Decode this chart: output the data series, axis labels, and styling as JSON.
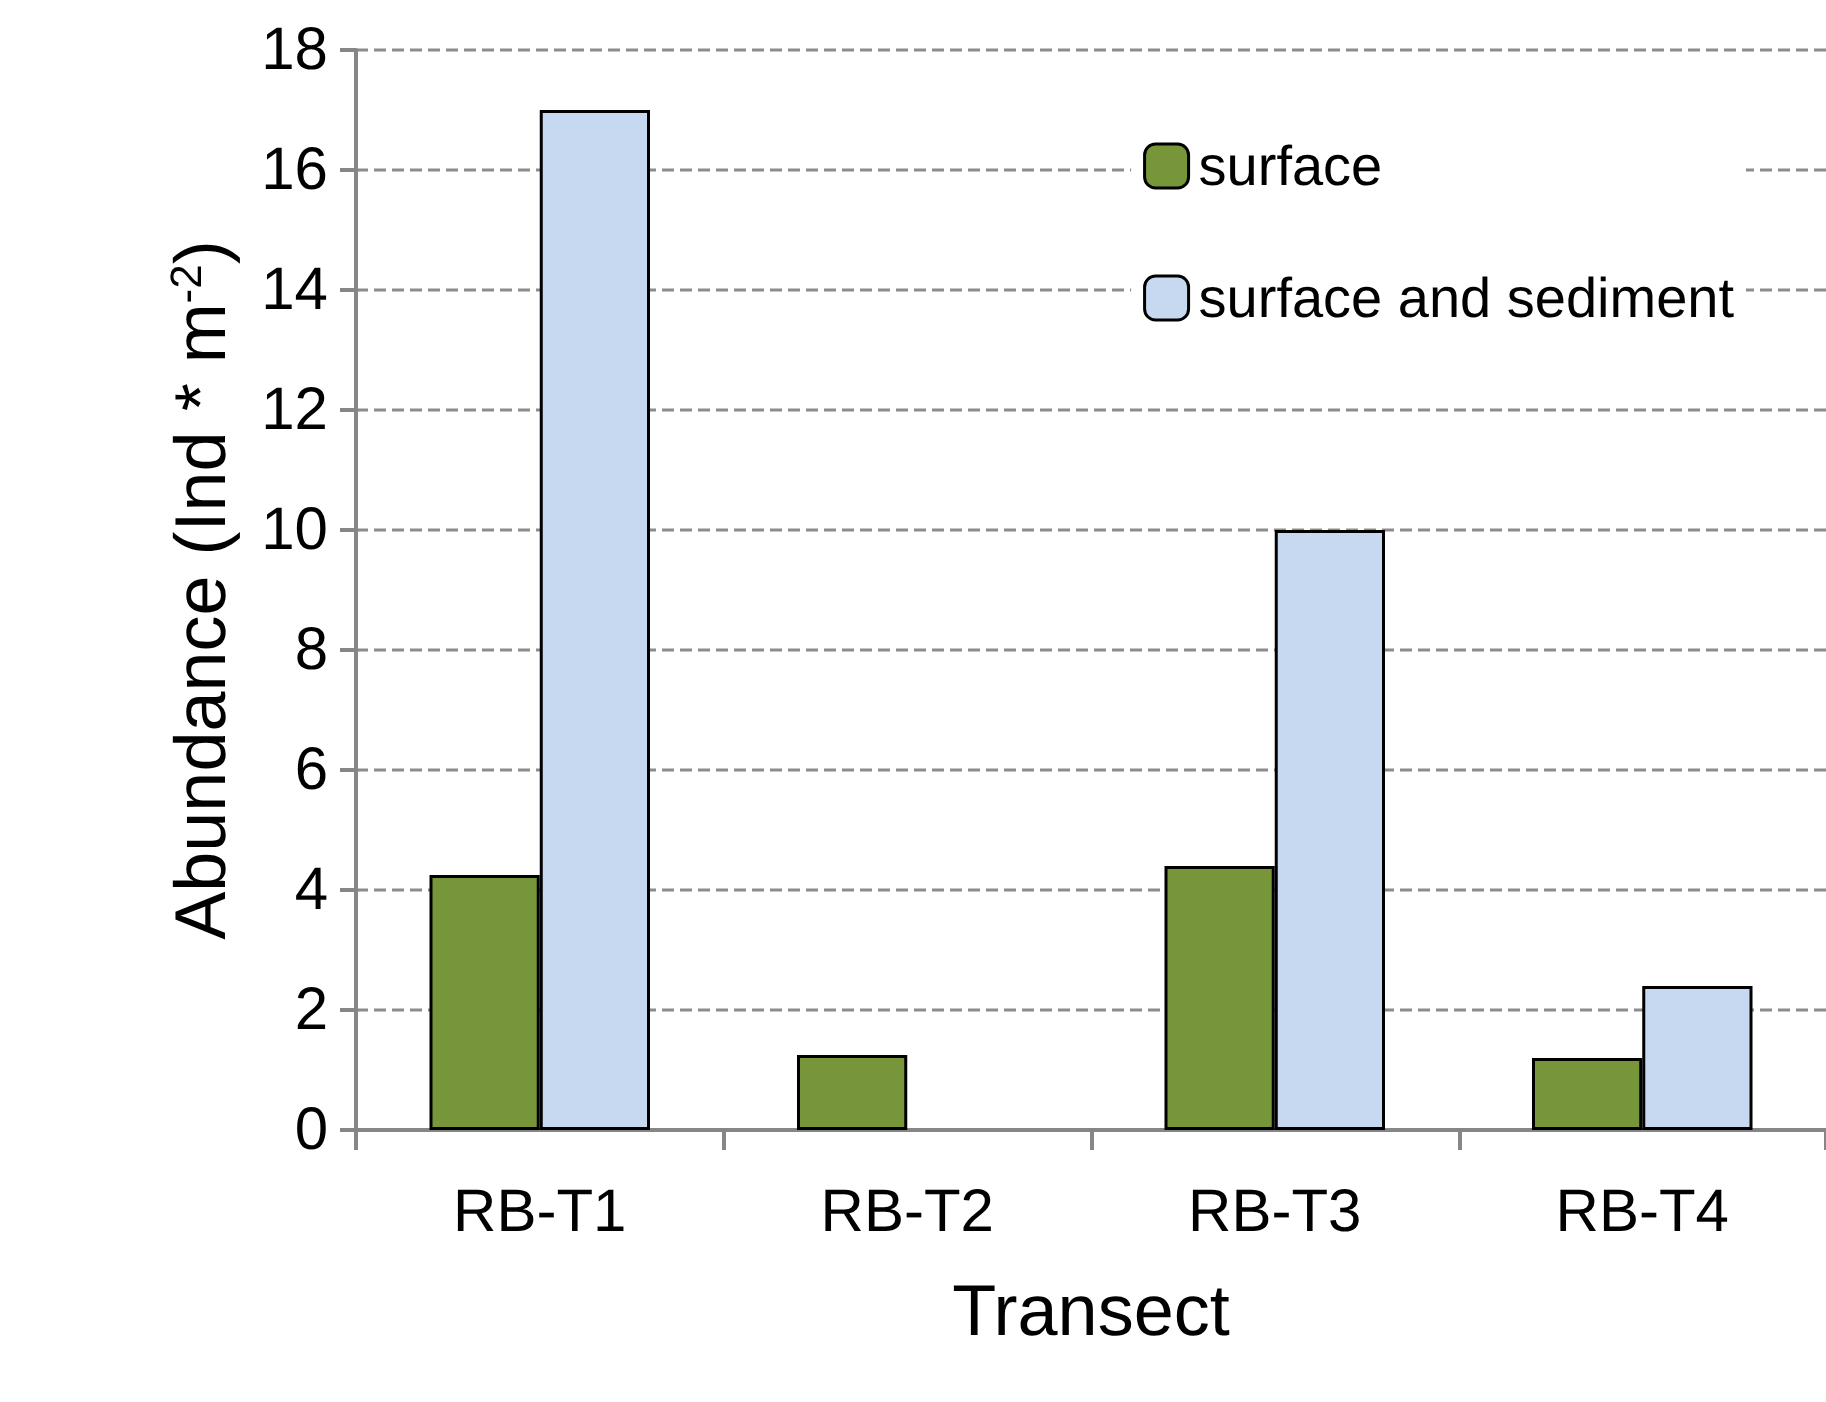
{
  "chart_data": {
    "type": "bar",
    "xlabel": "Transect",
    "ylabel": "Abundance (Ind * m$^{-2}$)",
    "categories": [
      "RB-T1",
      "RB-T2",
      "RB-T3",
      "RB-T4"
    ],
    "series": [
      {
        "name": "surface",
        "color": "#77963a",
        "values": [
          4.25,
          1.25,
          4.4,
          1.2
        ]
      },
      {
        "name": "surface and sediment",
        "color": "#c6d9f1",
        "values": [
          17,
          null,
          10,
          2.4
        ]
      }
    ],
    "ylim": [
      0,
      18
    ],
    "yticks": [
      0,
      2,
      4,
      6,
      8,
      10,
      12,
      14,
      16,
      18
    ],
    "grid": "y",
    "legend": "top right"
  }
}
